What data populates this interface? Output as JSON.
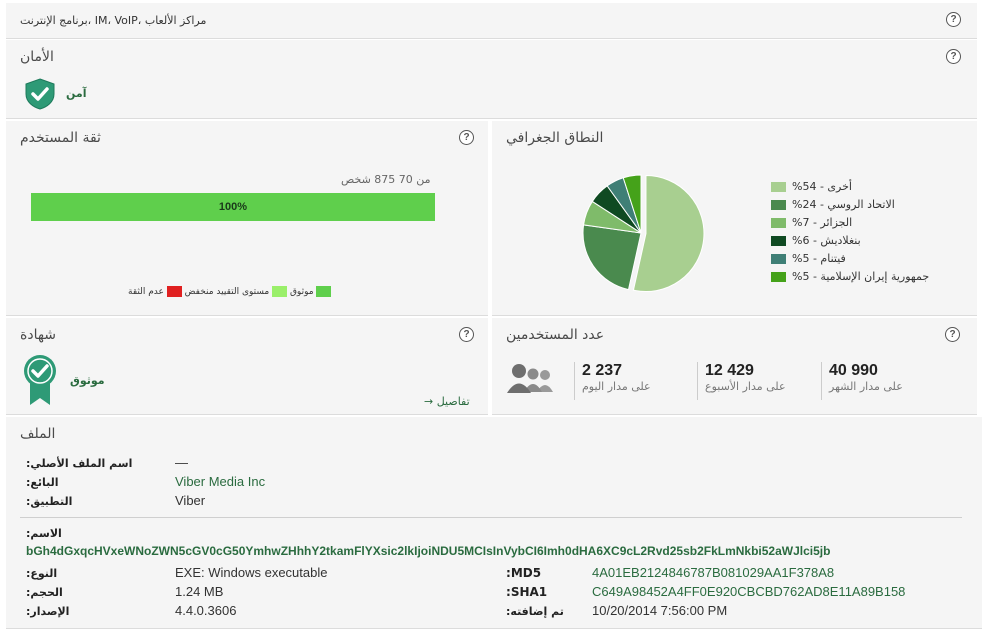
{
  "header": {
    "category": "مراكز الألعاب ،IM، VoIP ،برنامج الإنترنت"
  },
  "help_symbol": "?",
  "security": {
    "title": "الأمان",
    "status": "آمن"
  },
  "trust": {
    "title": "ثقة المستخدم",
    "count_text": "من 70 875 شخص",
    "bar_label": "100%",
    "bar_fraction": 1.0,
    "legend": [
      {
        "label": "موثوق",
        "color": "#5fcf4c"
      },
      {
        "label": "مستوى التقييد منخفض",
        "color": "#9aef6a"
      },
      {
        "label": "عدم الثقة",
        "color": "#e02020"
      }
    ]
  },
  "geo": {
    "title": "النطاق الجغرافي",
    "items": [
      {
        "label": "أخرى - 54%",
        "value": 54,
        "color": "#a8cf90"
      },
      {
        "label": "الاتحاد الروسي - 24%",
        "value": 24,
        "color": "#4a8a4e"
      },
      {
        "label": "الجزائر - 7%",
        "value": 7,
        "color": "#7fbb6a"
      },
      {
        "label": "بنغلاديش - 6%",
        "value": 6,
        "color": "#0f4a22"
      },
      {
        "label": "فيتنام - 5%",
        "value": 5,
        "color": "#3f7f76"
      },
      {
        "label": "جمهورية إيران الإسلامية - 5%",
        "value": 5,
        "color": "#45a21a"
      }
    ]
  },
  "certificate": {
    "title": "شهادة",
    "status": "موثوق",
    "details_link": "تفاصيل →"
  },
  "users": {
    "title": "عدد المستخدمين",
    "stats": [
      {
        "value": "40 990",
        "label": "على مدار الشهر"
      },
      {
        "value": "12 429",
        "label": "على مدار الأسبوع"
      },
      {
        "value": "2 237",
        "label": "على مدار اليوم"
      }
    ]
  },
  "file": {
    "title": "الملف",
    "original_name_label": "اسم الملف الأصلي:",
    "original_name_value": "—",
    "vendor_label": "البائع:",
    "vendor_value": "Viber Media Inc",
    "app_label": "التطبيق:",
    "app_value": "Viber",
    "name_label": "الاسم:",
    "name_value": "bGh4dGxqcHVxeWNoZWN5cGV0cG50YmhwZHhhY2tkamFlYXsic2lkIjoiNDU5MCIsInVybCI6Imh0dHA6XC9cL2Rvd25sb2FkLmNkbi52aWJlci5jb",
    "type_label": "النوع:",
    "type_value": "EXE: Windows executable",
    "size_label": "الحجم:",
    "size_value": "1.24 MB",
    "version_label": "الإصدار:",
    "version_value": "4.4.0.3606",
    "md5_label": "MD5:",
    "md5_value": "4A01EB2124846787B081029AA1F378A8",
    "sha1_label": "SHA1:",
    "sha1_value": "C649A98452A4FF0E920CBCBD762AD8E11A89B158",
    "added_label": "تم إضافته:",
    "added_value": "10/20/2014 7:56:00 PM"
  }
}
